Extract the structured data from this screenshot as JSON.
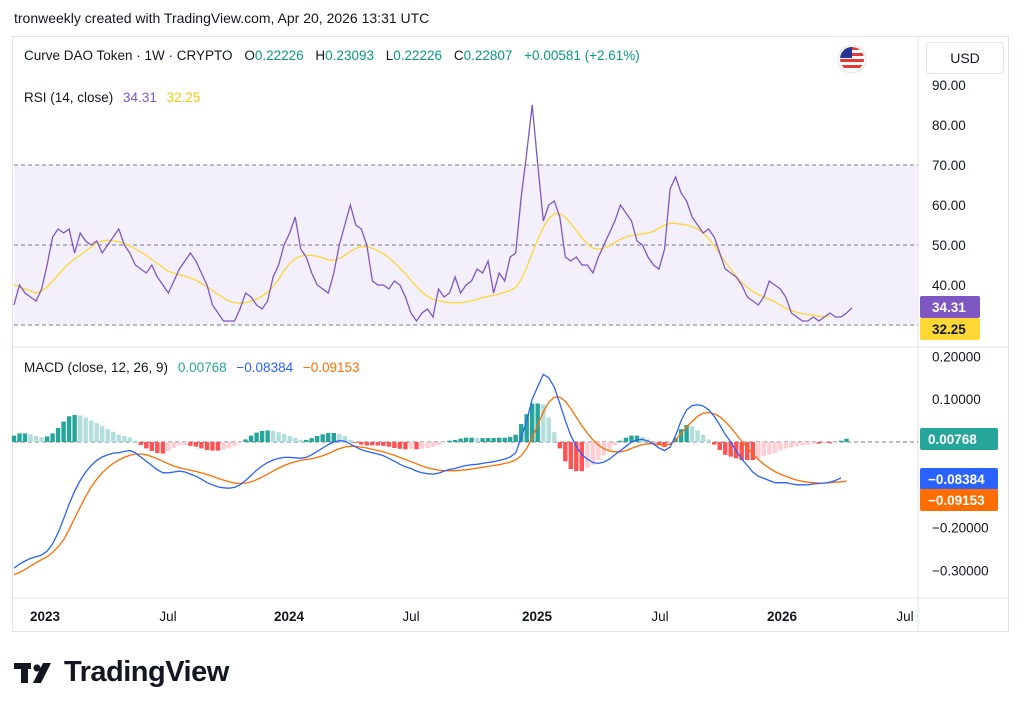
{
  "credit": "tronweekly created with TradingView.com, Apr 20, 2026 13:31 UTC",
  "header": {
    "symbol": "Curve DAO Token · 1W · CRYPTO",
    "o_label": "O",
    "o_value": "0.22226",
    "h_label": "H",
    "h_value": "0.23093",
    "l_label": "L",
    "l_value": "0.22226",
    "c_label": "C",
    "c_value": "0.22807",
    "change": "+0.00581 (+2.61%)"
  },
  "currency": "USD",
  "flag_icon": "us-flag-icon",
  "brand": "TradingView",
  "colors": {
    "rsi": "#7e57c2",
    "rsi_ma": "#fdd835",
    "macd": "#2962ff",
    "signal": "#ff6d00",
    "hist_pos_strong": "#26a69a",
    "hist_pos_weak": "#b2dfdb",
    "hist_neg_strong": "#ff5252",
    "hist_neg_weak": "#ffcdd2",
    "positive": "#089981",
    "band": "#f3effb"
  },
  "chart_data": [
    {
      "type": "line",
      "title": "RSI (14, close)",
      "legend": {
        "rsi_value": "34.31",
        "ma_value": "32.25"
      },
      "ylim": [
        30,
        90
      ],
      "y_ticks": [
        "90.00",
        "80.00",
        "70.00",
        "60.00",
        "50.00",
        "40.00"
      ],
      "bands": [
        30,
        50,
        70
      ],
      "last_labels": [
        "34.31",
        "32.25"
      ],
      "x_tick_labels": [
        "2023",
        "Jul",
        "2024",
        "Jul",
        "2025",
        "Jul",
        "2026",
        "Jul"
      ],
      "series": [
        {
          "name": "RSI",
          "values": [
            35,
            40,
            38,
            37,
            36,
            39,
            45,
            52,
            54,
            53,
            54,
            48,
            53,
            51,
            50,
            51,
            48,
            50,
            52,
            54,
            50,
            48,
            45,
            44,
            43,
            45,
            42,
            40,
            38,
            41,
            44,
            46,
            48,
            46,
            43,
            40,
            35,
            33,
            31,
            31,
            31,
            34,
            38,
            37,
            35,
            34,
            36,
            42,
            45,
            50,
            53,
            57,
            49,
            47,
            43,
            40,
            39,
            38,
            43,
            50,
            55,
            60,
            55,
            54,
            50,
            41,
            40,
            40,
            39,
            41,
            40,
            37,
            33,
            31,
            33,
            34,
            32,
            39,
            37,
            38,
            42,
            38,
            40,
            41,
            44,
            43,
            46,
            38,
            43,
            41,
            47,
            48,
            62,
            73,
            85,
            70,
            56,
            60,
            61,
            57,
            47,
            46,
            47,
            45,
            45,
            43,
            47,
            50,
            53,
            56,
            60,
            58,
            56,
            51,
            50,
            47,
            45,
            44,
            49,
            64,
            67,
            63,
            61,
            57,
            55,
            53,
            54,
            52,
            48,
            44,
            43,
            42,
            40,
            37,
            36,
            35,
            37,
            41,
            40,
            39,
            37,
            33,
            32,
            31,
            31,
            32,
            31,
            32,
            33,
            32,
            32,
            33,
            34.31
          ]
        },
        {
          "name": "RSI-based MA",
          "values": [
            40,
            39.5,
            39,
            38.5,
            38,
            38.5,
            39.5,
            41,
            42.5,
            44,
            45.5,
            46.5,
            47.5,
            48.5,
            49.5,
            50.5,
            51,
            51.2,
            51,
            50.8,
            50.4,
            49.8,
            49,
            48.2,
            47.4,
            46.4,
            45.4,
            44.4,
            43.4,
            43,
            42.6,
            42.2,
            41.8,
            41.2,
            40.4,
            39.6,
            38.6,
            37.6,
            36.8,
            36,
            35.6,
            35.4,
            35.6,
            36,
            36.5,
            37.2,
            38.2,
            39.6,
            41.4,
            43.6,
            45.4,
            46.6,
            47.2,
            47.4,
            47.4,
            47.2,
            46.8,
            46.2,
            46.2,
            46.6,
            47.4,
            48.4,
            49.2,
            49.6,
            49.6,
            49.2,
            48.6,
            47.8,
            46.8,
            45.6,
            44.2,
            42.8,
            41.2,
            39.6,
            38.2,
            37.2,
            36.4,
            36,
            35.8,
            35.6,
            35.6,
            35.6,
            35.8,
            36,
            36.4,
            36.8,
            37.2,
            37.4,
            37.8,
            38.2,
            38.6,
            39.4,
            41.4,
            44.4,
            48,
            51.4,
            54.4,
            56.6,
            57.8,
            57.8,
            57,
            55.4,
            53.6,
            51.8,
            50.2,
            49.2,
            49,
            49.2,
            49.8,
            50.6,
            51.4,
            52,
            52.4,
            52.6,
            52.8,
            53,
            53.4,
            54.2,
            55,
            55.4,
            55.4,
            55.2,
            55,
            54.6,
            54,
            53,
            51.6,
            49.8,
            47.8,
            45.8,
            44,
            42.2,
            40.6,
            39.4,
            38.4,
            37.6,
            37,
            36.4,
            35.8,
            35,
            34.2,
            33.6,
            33.2,
            32.8,
            32.6,
            32.4,
            32.2,
            32.1,
            32.25
          ]
        }
      ]
    },
    {
      "type": "line",
      "title": "MACD (close, 12, 26, 9)",
      "legend": {
        "hist_value": "0.00768",
        "macd_value": "−0.08384",
        "signal_value": "−0.09153"
      },
      "ylim": [
        -0.33,
        0.21
      ],
      "y_ticks": [
        "0.20000",
        "0.10000",
        "−0.20000",
        "−0.30000"
      ],
      "last_labels": [
        "0.00768",
        "−0.08384",
        "−0.09153"
      ],
      "series": [
        {
          "name": "MACD",
          "values": [
            -0.295,
            -0.285,
            -0.278,
            -0.272,
            -0.268,
            -0.264,
            -0.255,
            -0.238,
            -0.212,
            -0.18,
            -0.145,
            -0.115,
            -0.09,
            -0.07,
            -0.055,
            -0.043,
            -0.035,
            -0.03,
            -0.026,
            -0.025,
            -0.022,
            -0.02,
            -0.025,
            -0.035,
            -0.045,
            -0.055,
            -0.065,
            -0.072,
            -0.072,
            -0.07,
            -0.068,
            -0.07,
            -0.075,
            -0.08,
            -0.087,
            -0.095,
            -0.1,
            -0.105,
            -0.107,
            -0.108,
            -0.106,
            -0.1,
            -0.09,
            -0.078,
            -0.066,
            -0.056,
            -0.048,
            -0.042,
            -0.038,
            -0.036,
            -0.036,
            -0.037,
            -0.038,
            -0.036,
            -0.03,
            -0.022,
            -0.014,
            -0.006,
            0,
            0.003,
            0.002,
            -0.005,
            -0.012,
            -0.018,
            -0.022,
            -0.025,
            -0.028,
            -0.032,
            -0.038,
            -0.045,
            -0.052,
            -0.058,
            -0.062,
            -0.068,
            -0.072,
            -0.074,
            -0.075,
            -0.073,
            -0.068,
            -0.064,
            -0.062,
            -0.058,
            -0.055,
            -0.053,
            -0.052,
            -0.05,
            -0.048,
            -0.046,
            -0.043,
            -0.04,
            -0.035,
            -0.025,
            0.01,
            0.05,
            0.1,
            0.13,
            0.158,
            0.15,
            0.128,
            0.09,
            0.05,
            0.015,
            -0.01,
            -0.03,
            -0.04,
            -0.048,
            -0.05,
            -0.047,
            -0.04,
            -0.03,
            -0.02,
            -0.01,
            0,
            0.005,
            0.006,
            0.002,
            -0.005,
            -0.014,
            -0.02,
            -0.012,
            0.015,
            0.05,
            0.075,
            0.085,
            0.087,
            0.084,
            0.075,
            0.06,
            0.04,
            0.018,
            0,
            -0.02,
            -0.04,
            -0.055,
            -0.07,
            -0.08,
            -0.085,
            -0.09,
            -0.095,
            -0.095,
            -0.095,
            -0.098,
            -0.1,
            -0.1,
            -0.1,
            -0.098,
            -0.097,
            -0.096,
            -0.094,
            -0.09,
            -0.08384
          ]
        },
        {
          "name": "Signal",
          "values": [
            -0.31,
            -0.305,
            -0.298,
            -0.29,
            -0.282,
            -0.275,
            -0.268,
            -0.258,
            -0.245,
            -0.228,
            -0.205,
            -0.178,
            -0.152,
            -0.127,
            -0.105,
            -0.087,
            -0.072,
            -0.06,
            -0.05,
            -0.042,
            -0.036,
            -0.031,
            -0.028,
            -0.028,
            -0.03,
            -0.034,
            -0.039,
            -0.045,
            -0.051,
            -0.056,
            -0.06,
            -0.063,
            -0.066,
            -0.069,
            -0.072,
            -0.076,
            -0.08,
            -0.085,
            -0.089,
            -0.093,
            -0.096,
            -0.097,
            -0.096,
            -0.093,
            -0.088,
            -0.082,
            -0.075,
            -0.068,
            -0.061,
            -0.055,
            -0.05,
            -0.046,
            -0.043,
            -0.041,
            -0.039,
            -0.036,
            -0.032,
            -0.027,
            -0.021,
            -0.016,
            -0.012,
            -0.01,
            -0.01,
            -0.012,
            -0.014,
            -0.017,
            -0.02,
            -0.023,
            -0.027,
            -0.031,
            -0.036,
            -0.041,
            -0.046,
            -0.051,
            -0.056,
            -0.06,
            -0.063,
            -0.066,
            -0.067,
            -0.067,
            -0.067,
            -0.066,
            -0.065,
            -0.063,
            -0.061,
            -0.059,
            -0.057,
            -0.055,
            -0.053,
            -0.05,
            -0.047,
            -0.042,
            -0.032,
            -0.015,
            0.01,
            0.04,
            0.07,
            0.093,
            0.105,
            0.105,
            0.095,
            0.078,
            0.058,
            0.038,
            0.02,
            0.005,
            -0.007,
            -0.016,
            -0.021,
            -0.023,
            -0.023,
            -0.02,
            -0.015,
            -0.01,
            -0.006,
            -0.004,
            -0.004,
            -0.006,
            -0.008,
            -0.005,
            0.005,
            0.02,
            0.035,
            0.048,
            0.06,
            0.067,
            0.069,
            0.066,
            0.059,
            0.048,
            0.034,
            0.018,
            0.002,
            -0.013,
            -0.028,
            -0.041,
            -0.052,
            -0.061,
            -0.069,
            -0.075,
            -0.08,
            -0.085,
            -0.089,
            -0.092,
            -0.094,
            -0.095,
            -0.096,
            -0.096,
            -0.095,
            -0.094,
            -0.093,
            -0.09153
          ]
        },
        {
          "name": "Histogram",
          "values": [
            0.015,
            0.02,
            0.02,
            0.018,
            0.014,
            0.011,
            0.013,
            0.02,
            0.033,
            0.048,
            0.06,
            0.063,
            0.062,
            0.057,
            0.05,
            0.044,
            0.037,
            0.03,
            0.024,
            0.017,
            0.014,
            0.011,
            0.003,
            -0.007,
            -0.015,
            -0.021,
            -0.026,
            -0.027,
            -0.021,
            -0.014,
            -0.008,
            -0.007,
            -0.009,
            -0.011,
            -0.015,
            -0.019,
            -0.02,
            -0.02,
            -0.018,
            -0.015,
            -0.01,
            -0.003,
            0.006,
            0.015,
            0.022,
            0.026,
            0.027,
            0.026,
            0.023,
            0.019,
            0.014,
            0.009,
            0.005,
            0.005,
            0.009,
            0.014,
            0.018,
            0.021,
            0.021,
            0.019,
            0.014,
            0.005,
            -0.002,
            -0.006,
            -0.008,
            -0.008,
            -0.008,
            -0.009,
            -0.011,
            -0.014,
            -0.016,
            -0.017,
            -0.016,
            -0.017,
            -0.016,
            -0.014,
            -0.012,
            -0.007,
            -0.001,
            0.003,
            0.005,
            0.008,
            0.01,
            0.01,
            0.009,
            0.009,
            0.009,
            0.009,
            0.01,
            0.01,
            0.012,
            0.017,
            0.042,
            0.065,
            0.09,
            0.09,
            0.088,
            0.057,
            0.023,
            -0.015,
            -0.045,
            -0.063,
            -0.068,
            -0.068,
            -0.06,
            -0.053,
            -0.043,
            -0.031,
            -0.019,
            -0.007,
            0.003,
            0.01,
            0.015,
            0.015,
            0.012,
            0.006,
            -0.001,
            -0.008,
            -0.012,
            -0.007,
            0.01,
            0.03,
            0.04,
            0.037,
            0.027,
            0.017,
            0.006,
            -0.006,
            -0.019,
            -0.03,
            -0.034,
            -0.038,
            -0.042,
            -0.042,
            -0.042,
            -0.039,
            -0.033,
            -0.029,
            -0.026,
            -0.02,
            -0.015,
            -0.013,
            -0.009,
            -0.008,
            -0.006,
            -0.004,
            -0.004,
            -0.003,
            -0.003,
            -0.002,
            0.003,
            0.00768
          ]
        }
      ]
    }
  ]
}
